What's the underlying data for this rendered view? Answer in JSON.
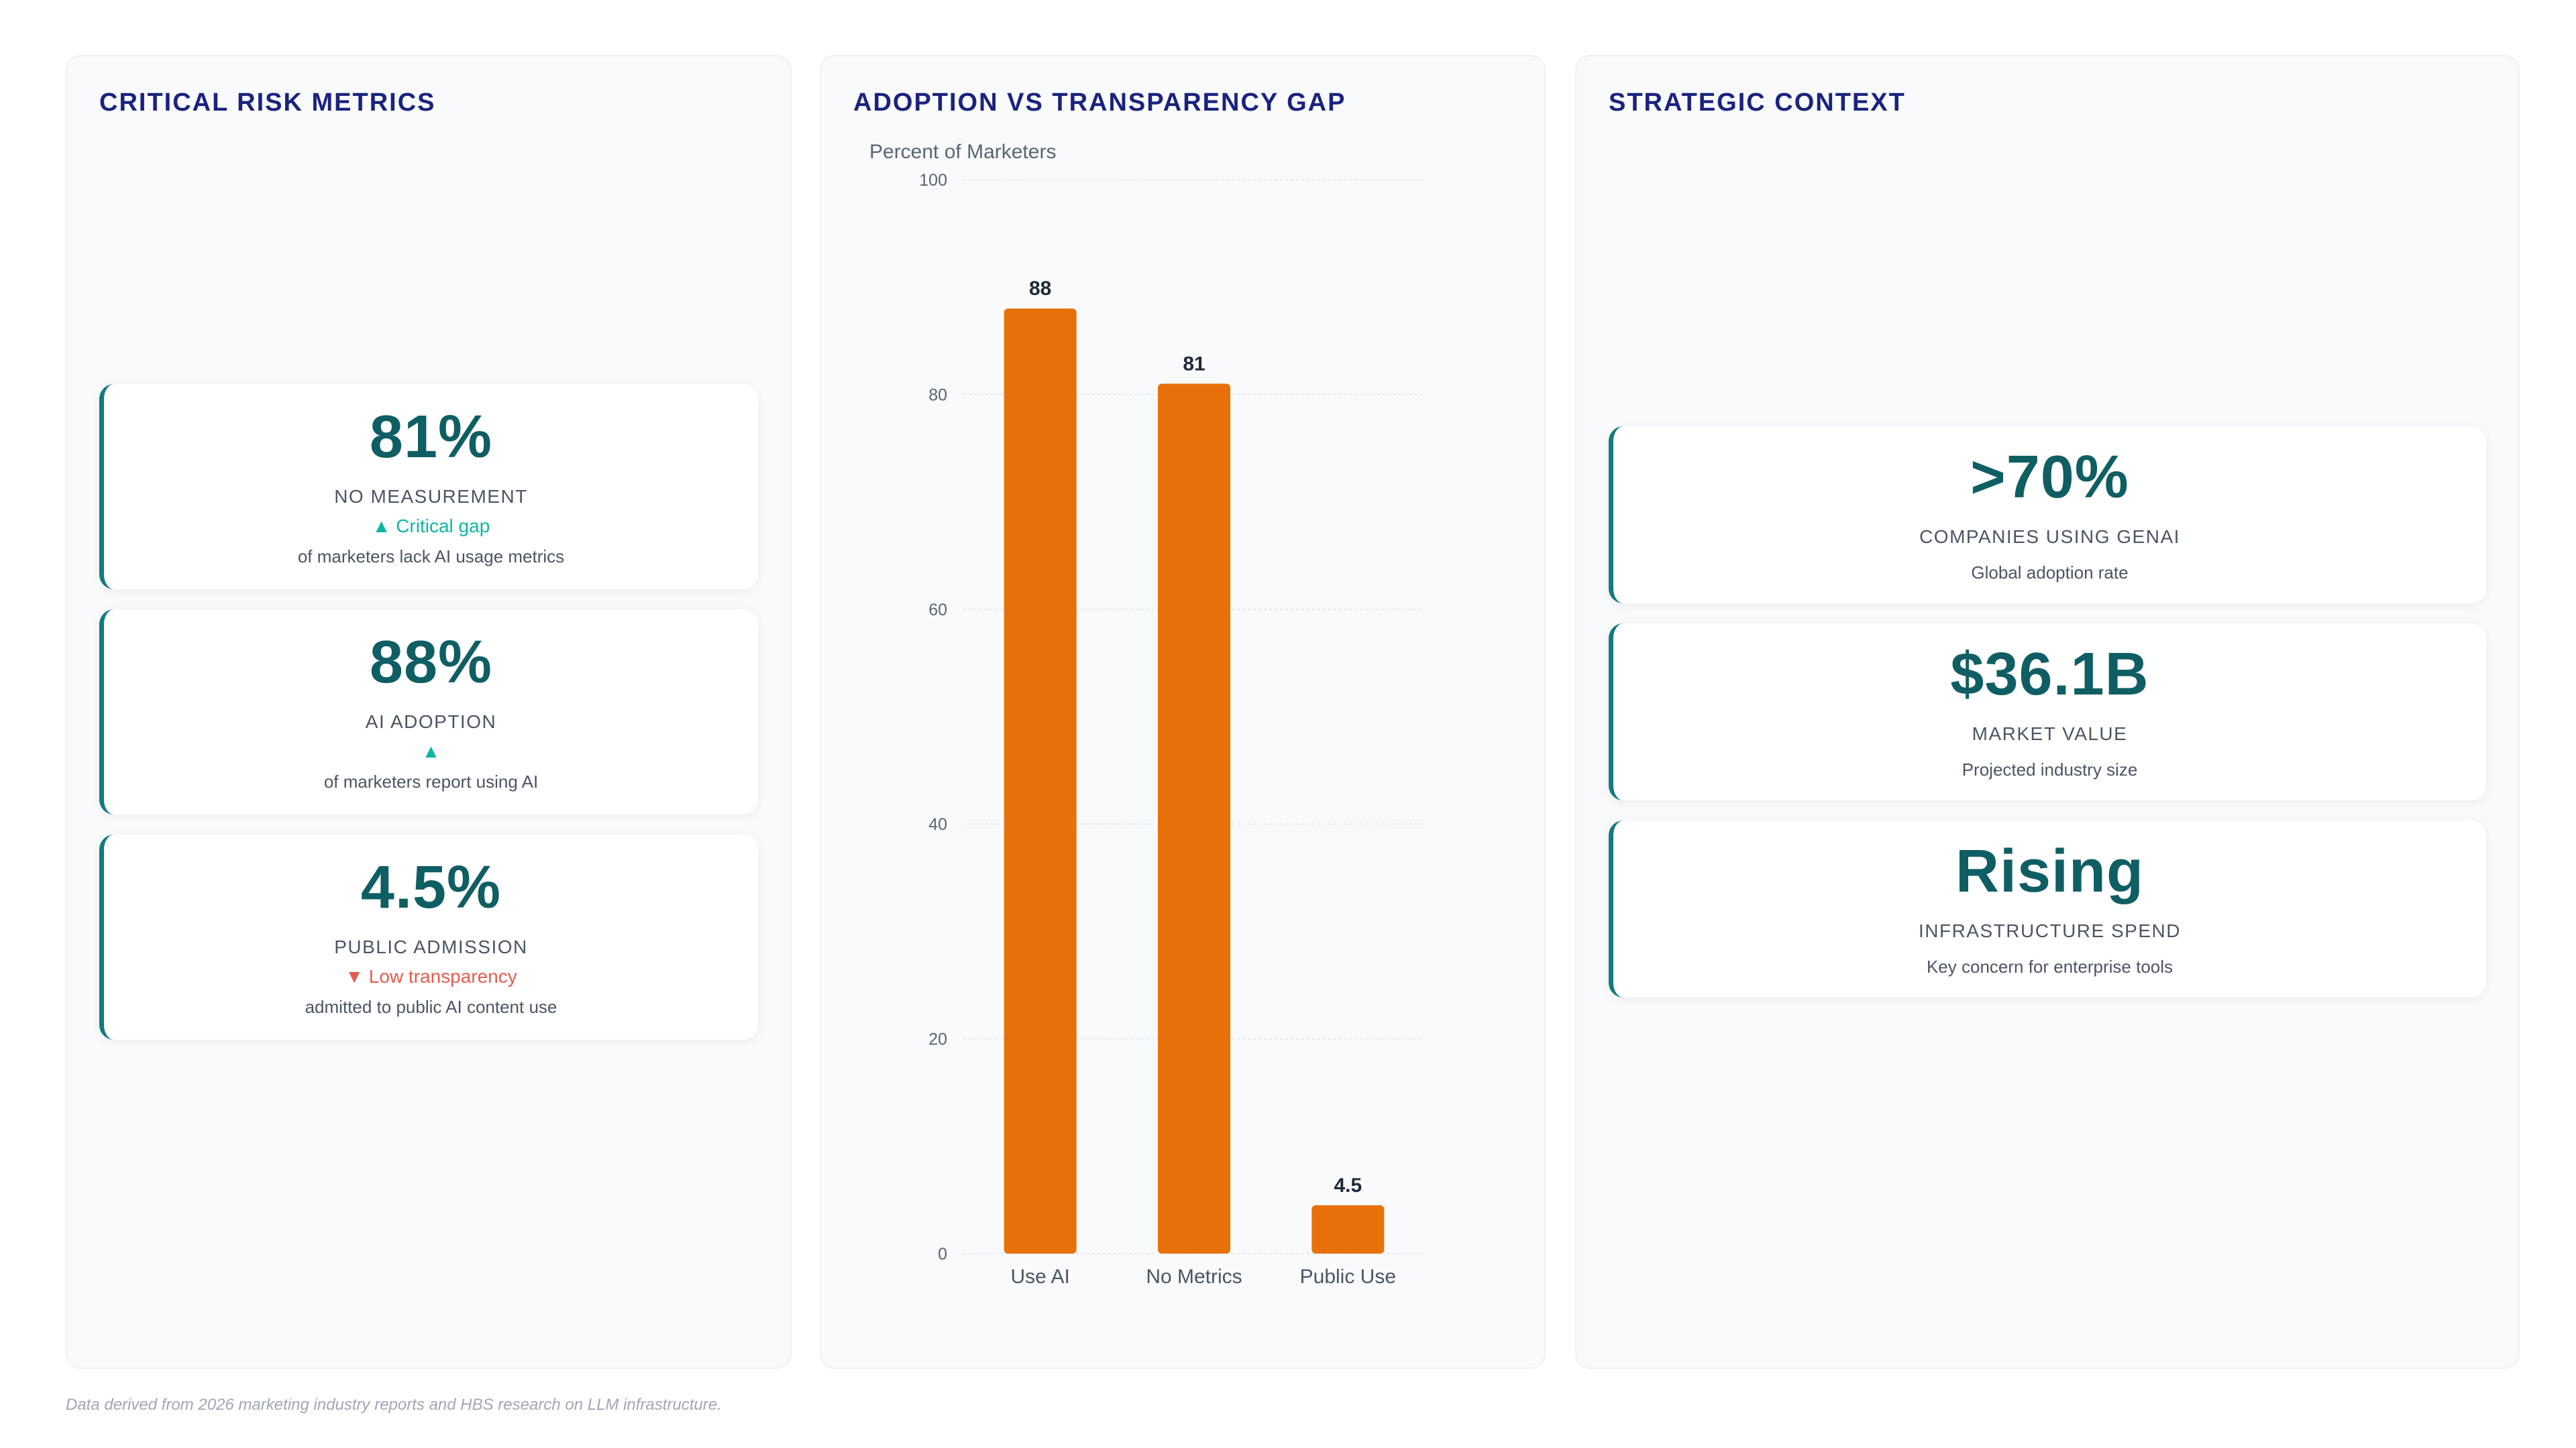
{
  "left_panel": {
    "title": "CRITICAL RISK METRICS",
    "cards": [
      {
        "value": "81%",
        "label": "NO MEASUREMENT",
        "trend": "▲ Critical gap",
        "trend_dir": "up",
        "desc": "of marketers lack AI usage metrics"
      },
      {
        "value": "88%",
        "label": "AI ADOPTION",
        "trend": "▲",
        "trend_dir": "up",
        "desc": "of marketers report using AI"
      },
      {
        "value": "4.5%",
        "label": "PUBLIC ADMISSION",
        "trend": "▼ Low transparency",
        "trend_dir": "down",
        "desc": "admitted to public AI content use"
      }
    ]
  },
  "chart_panel": {
    "title": "ADOPTION VS TRANSPARENCY GAP"
  },
  "right_panel": {
    "title": "STRATEGIC CONTEXT",
    "cards": [
      {
        "value": ">70%",
        "label": "COMPANIES USING GENAI",
        "desc": "Global adoption rate"
      },
      {
        "value": "$36.1B",
        "label": "MARKET VALUE",
        "desc": "Projected industry size"
      },
      {
        "value": "Rising",
        "label": "INFRASTRUCTURE SPEND",
        "desc": "Key concern for enterprise tools"
      }
    ]
  },
  "chart_data": {
    "type": "bar",
    "title": "",
    "ylabel": "Percent of Marketers",
    "categories": [
      "Use AI",
      "No Metrics",
      "Public Use"
    ],
    "values": [
      88,
      81,
      4.5
    ],
    "data_labels": [
      "88",
      "81",
      "4.5"
    ],
    "ylim": [
      0,
      100
    ],
    "yticks": [
      0,
      20,
      40,
      60,
      80,
      100
    ],
    "grid": true,
    "bar_color": "#e8700a"
  },
  "footer": {
    "note": "Data derived from 2026 marketing industry reports and HBS research on LLM infrastructure."
  }
}
